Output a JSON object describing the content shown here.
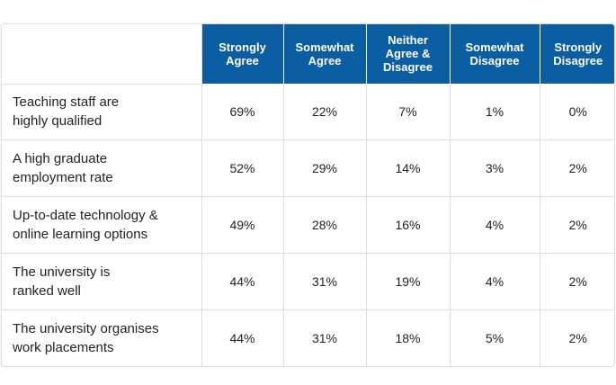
{
  "chart_data": {
    "type": "table",
    "columns": [
      "Strongly Agree",
      "Somewhat Agree",
      "Neither Agree & Disagree",
      "Somewhat Disagree",
      "Strongly Disagree"
    ],
    "rows": [
      {
        "label": "Teaching staff are highly qualified",
        "values": [
          "69%",
          "22%",
          "7%",
          "1%",
          "0%"
        ]
      },
      {
        "label": "A high graduate employment rate",
        "values": [
          "52%",
          "29%",
          "14%",
          "3%",
          "2%"
        ]
      },
      {
        "label": "Up-to-date technology & online learning options",
        "values": [
          "49%",
          "28%",
          "16%",
          "4%",
          "2%"
        ]
      },
      {
        "label": "The university is ranked well",
        "values": [
          "44%",
          "31%",
          "19%",
          "4%",
          "2%"
        ]
      },
      {
        "label": "The university organises work placements",
        "values": [
          "44%",
          "31%",
          "18%",
          "5%",
          "2%"
        ]
      }
    ],
    "header_color": "#0b5ea1"
  }
}
